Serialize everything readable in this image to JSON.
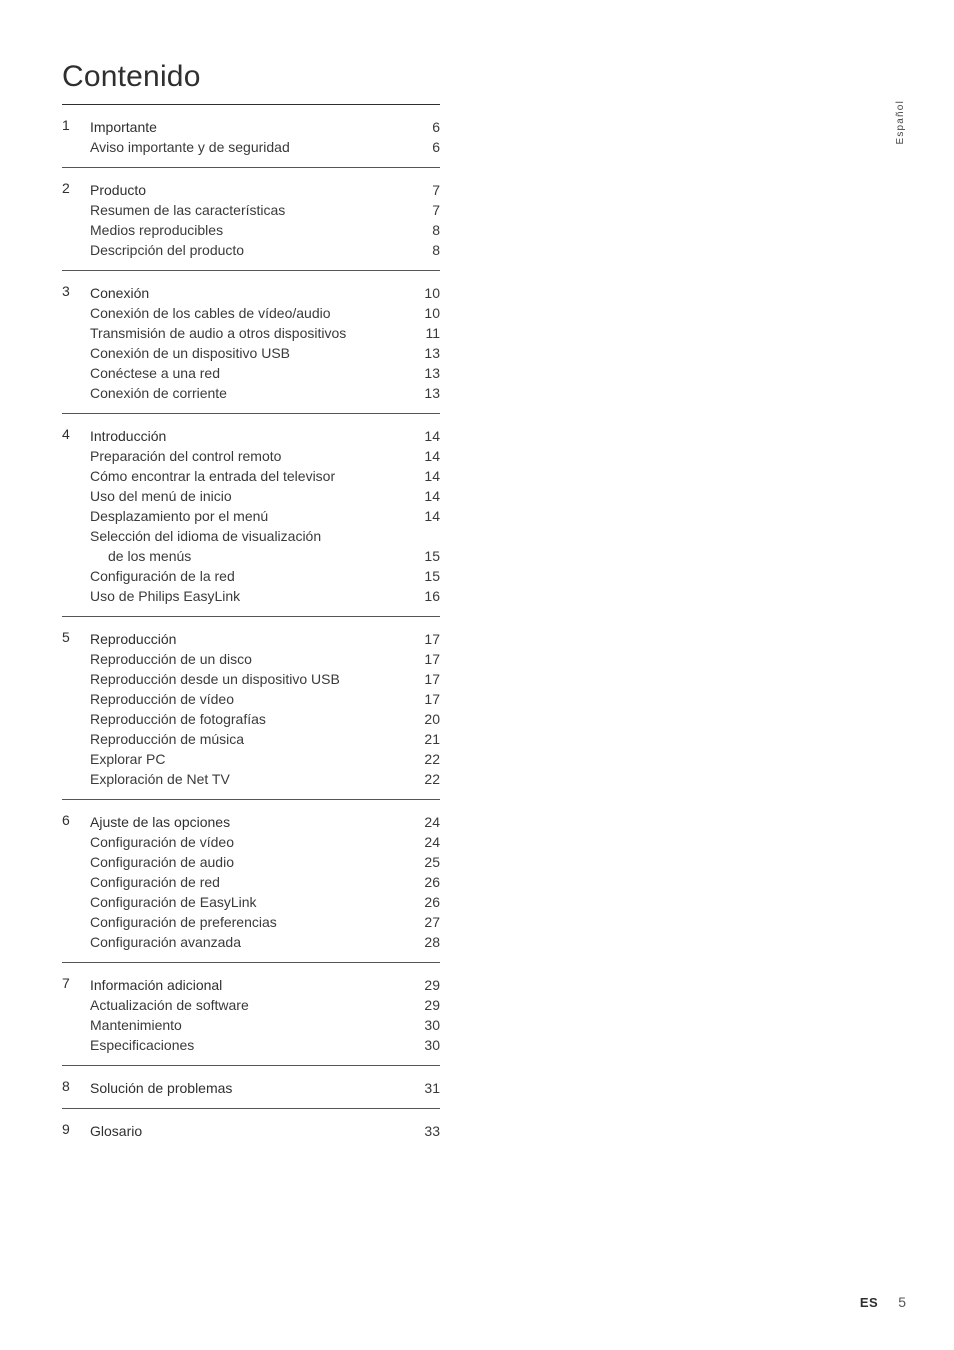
{
  "title": "Contenido",
  "side_tab": "Español",
  "footer": {
    "lang": "ES",
    "page": "5"
  },
  "sections": [
    {
      "num": "1",
      "head": {
        "label": "Importante",
        "page": "6"
      },
      "items": [
        {
          "label": "Aviso importante y de seguridad",
          "page": "6"
        }
      ]
    },
    {
      "num": "2",
      "head": {
        "label": "Producto",
        "page": "7"
      },
      "items": [
        {
          "label": "Resumen de las características",
          "page": "7"
        },
        {
          "label": "Medios reproducibles",
          "page": "8"
        },
        {
          "label": "Descripción del producto",
          "page": "8"
        }
      ]
    },
    {
      "num": "3",
      "head": {
        "label": "Conexión",
        "page": "10"
      },
      "items": [
        {
          "label": "Conexión de los cables de vídeo/audio",
          "page": "10"
        },
        {
          "label": "Transmisión de audio a otros dispositivos",
          "page": "11"
        },
        {
          "label": "Conexión de un dispositivo USB",
          "page": "13"
        },
        {
          "label": "Conéctese a una red",
          "page": "13"
        },
        {
          "label": "Conexión de corriente",
          "page": "13"
        }
      ]
    },
    {
      "num": "4",
      "head": {
        "label": "Introducción",
        "page": "14"
      },
      "items": [
        {
          "label": "Preparación del control remoto",
          "page": "14"
        },
        {
          "label": "Cómo encontrar la entrada del televisor",
          "page": "14"
        },
        {
          "label": "Uso del menú de inicio",
          "page": "14"
        },
        {
          "label": "Desplazamiento por el menú",
          "page": "14"
        },
        {
          "label": "Selección del idioma de visualización",
          "page": "",
          "nopage": true
        },
        {
          "label": "de los menús",
          "page": "15",
          "indent": true
        },
        {
          "label": "Configuración de la red",
          "page": "15"
        },
        {
          "label": "Uso de Philips EasyLink",
          "page": "16"
        }
      ]
    },
    {
      "num": "5",
      "head": {
        "label": "Reproducción",
        "page": "17"
      },
      "items": [
        {
          "label": "Reproducción de un disco",
          "page": "17"
        },
        {
          "label": "Reproducción desde un dispositivo USB",
          "page": "17"
        },
        {
          "label": "Reproducción de vídeo",
          "page": "17"
        },
        {
          "label": "Reproducción de fotografías",
          "page": "20"
        },
        {
          "label": "Reproducción de música",
          "page": "21"
        },
        {
          "label": "Explorar PC",
          "page": "22"
        },
        {
          "label": "Exploración de Net TV",
          "page": "22"
        }
      ]
    },
    {
      "num": "6",
      "head": {
        "label": "Ajuste de las opciones",
        "page": "24"
      },
      "items": [
        {
          "label": "Configuración de vídeo",
          "page": "24"
        },
        {
          "label": "Configuración de audio",
          "page": "25"
        },
        {
          "label": "Configuración de red",
          "page": "26"
        },
        {
          "label": "Configuración de EasyLink",
          "page": "26"
        },
        {
          "label": "Configuración de preferencias",
          "page": "27"
        },
        {
          "label": "Configuración avanzada",
          "page": "28"
        }
      ]
    },
    {
      "num": "7",
      "head": {
        "label": "Información adicional",
        "page": "29"
      },
      "items": [
        {
          "label": "Actualización de software",
          "page": "29"
        },
        {
          "label": "Mantenimiento",
          "page": "30"
        },
        {
          "label": "Especificaciones",
          "page": "30"
        }
      ]
    },
    {
      "num": "8",
      "head": {
        "label": "Solución de problemas",
        "page": "31"
      },
      "items": []
    },
    {
      "num": "9",
      "head": {
        "label": "Glosario",
        "page": "33"
      },
      "items": []
    }
  ]
}
